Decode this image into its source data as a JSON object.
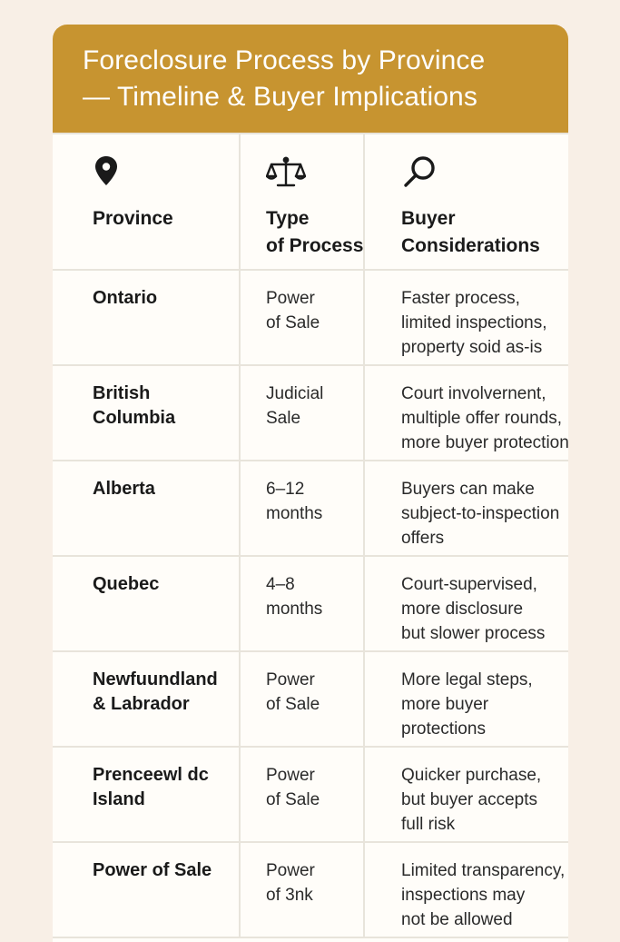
{
  "header": {
    "title_line1": "Foreclosure Process by Province",
    "title_line2": "— Timeline & Buyer Implications"
  },
  "columns": {
    "province": {
      "icon": "map-pin-icon",
      "line1": "Province",
      "line2": ""
    },
    "process": {
      "icon": "scales-icon",
      "line1": "Type",
      "line2": "of Process"
    },
    "buyer": {
      "icon": "magnifier-icon",
      "line1": "Buyer",
      "line2": "Considerations"
    }
  },
  "rows": [
    {
      "province": [
        "Ontario"
      ],
      "process": [
        "Power",
        "of Sale"
      ],
      "buyer": [
        "Faster process,",
        "limited inspections,",
        "property soid as-is"
      ]
    },
    {
      "province": [
        "British",
        "Columbia"
      ],
      "process": [
        "Judicial",
        "Sale"
      ],
      "buyer": [
        "Court involvernent,",
        "multiple offer rounds,",
        "more buyer protection"
      ]
    },
    {
      "province": [
        "Alberta"
      ],
      "process": [
        "6–12",
        "months"
      ],
      "buyer": [
        "Buyers can make",
        "subject-to-inspection",
        "offers"
      ]
    },
    {
      "province": [
        "Quebec"
      ],
      "process": [
        "4–8",
        "months"
      ],
      "buyer": [
        "Court-supervised,",
        "more disclosure",
        "but slower process"
      ]
    },
    {
      "province": [
        "Newfuundland",
        "& Labrador"
      ],
      "process": [
        "Power",
        "of Sale"
      ],
      "buyer": [
        "More legal steps,",
        "more buyer",
        "protections"
      ]
    },
    {
      "province": [
        "Prenceewl dc",
        "Island"
      ],
      "process": [
        "Power",
        "of Sale"
      ],
      "buyer": [
        "Quicker purchase,",
        "but buyer accepts",
        "full risk"
      ]
    },
    {
      "province": [
        "Power of Sale"
      ],
      "process": [
        "Power",
        "of 3nk"
      ],
      "buyer": [
        "Limited transparency,",
        "inspections may",
        "not be allowed"
      ]
    }
  ],
  "colors": {
    "header_bg": "#c79430",
    "page_bg": "#f8efe6",
    "grid": "#e8e4db"
  }
}
